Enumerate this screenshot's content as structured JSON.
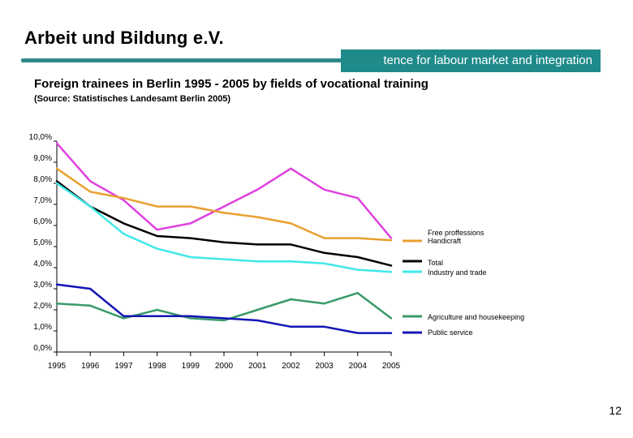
{
  "header": {
    "org_title": "Arbeit und Bildung e.V.",
    "tagline": "tence for labour market and integration",
    "accent_color": "#2e8a8a"
  },
  "page_number": "12",
  "chart_data": {
    "type": "line",
    "title": "Foreign trainees in Berlin 1995 - 2005 by fields of vocational training",
    "subtitle": "(Source: Statistisches Landesamt Berlin 2005)",
    "xlabel": "",
    "ylabel": "",
    "x": [
      "1995",
      "1996",
      "1997",
      "1998",
      "1999",
      "2000",
      "2001",
      "2002",
      "2003",
      "2004",
      "2005"
    ],
    "ylim": [
      0,
      10
    ],
    "yticks": [
      0,
      1,
      2,
      3,
      4,
      5,
      6,
      7,
      8,
      9,
      10
    ],
    "ytick_labels": [
      "0,0%",
      "1,0%",
      "2,0%",
      "3,0%",
      "4,0%",
      "5,0%",
      "6,0%",
      "7,0%",
      "8,0%",
      "9,0%",
      "10,0%"
    ],
    "legend_placement": "right",
    "grid": false,
    "series": [
      {
        "name": "Free proffessions",
        "color": "#e040e0",
        "values": [
          9.9,
          8.1,
          7.2,
          5.8,
          6.1,
          6.9,
          7.7,
          8.7,
          7.7,
          7.3,
          5.4
        ]
      },
      {
        "name": "Handicraft",
        "color": "#e8a030",
        "values": [
          8.7,
          7.6,
          7.3,
          6.9,
          6.9,
          6.6,
          6.4,
          6.1,
          5.4,
          5.4,
          5.3
        ]
      },
      {
        "name": "Total",
        "color": "#000000",
        "values": [
          8.1,
          6.9,
          6.1,
          5.5,
          5.4,
          5.2,
          5.1,
          5.1,
          4.7,
          4.5,
          4.1
        ]
      },
      {
        "name": "Industry and trade",
        "color": "#40e8e8",
        "values": [
          8.0,
          6.9,
          5.6,
          4.9,
          4.5,
          4.4,
          4.3,
          4.3,
          4.2,
          3.9,
          3.8
        ]
      },
      {
        "name": "Agriculture and housekeeping",
        "color": "#3a9a6a",
        "values": [
          2.3,
          2.2,
          1.6,
          2.0,
          1.6,
          1.5,
          2.0,
          2.5,
          2.3,
          2.8,
          1.6
        ]
      },
      {
        "name": "Public service",
        "color": "#1414b4",
        "values": [
          3.2,
          3.0,
          1.7,
          1.7,
          1.7,
          1.6,
          1.5,
          1.2,
          1.2,
          0.9,
          0.9
        ]
      }
    ]
  }
}
